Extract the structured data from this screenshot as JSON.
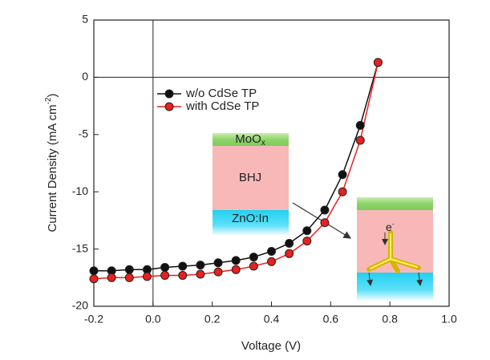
{
  "chart_data": {
    "type": "line",
    "x_label": "Voltage (V)",
    "y_label": [
      "Current Density (mA cm",
      "-2",
      ")"
    ],
    "x": [
      -0.2,
      -0.14,
      -0.08,
      -0.02,
      0.04,
      0.1,
      0.16,
      0.22,
      0.28,
      0.34,
      0.4,
      0.46,
      0.52,
      0.58,
      0.64,
      0.7,
      0.76
    ],
    "series": [
      {
        "name": "w/o CdSe TP",
        "color": "#111111",
        "values": [
          -16.9,
          -16.9,
          -16.8,
          -16.8,
          -16.6,
          -16.5,
          -16.4,
          -16.2,
          -16.0,
          -15.7,
          -15.2,
          -14.5,
          -13.4,
          -11.6,
          -8.5,
          -4.2,
          1.3
        ]
      },
      {
        "name": "with CdSe TP",
        "color": "#e8201e",
        "values": [
          -17.6,
          -17.5,
          -17.5,
          -17.4,
          -17.3,
          -17.3,
          -17.2,
          -17.0,
          -16.8,
          -16.5,
          -16.1,
          -15.4,
          -14.3,
          -12.7,
          -10.0,
          -5.5,
          1.3
        ]
      }
    ],
    "xlim": [
      -0.2,
      1.0
    ],
    "xticks": [
      -0.2,
      {
        "value": 0,
        "label": "0.0"
      },
      0.2,
      0.4,
      0.6,
      0.8,
      {
        "value": 1,
        "label": "1.0"
      }
    ],
    "ylim": [
      -20,
      5
    ],
    "yticks": [
      -20,
      -15,
      -10,
      -5,
      0,
      5
    ],
    "legend": "upper left",
    "inset": {
      "top_layer": "MoO",
      "top_layer_sub": "x",
      "middle_layer": "BHJ",
      "bottom_layer": "ZnO:In",
      "electron": "e",
      "electron_sup": "-"
    }
  }
}
